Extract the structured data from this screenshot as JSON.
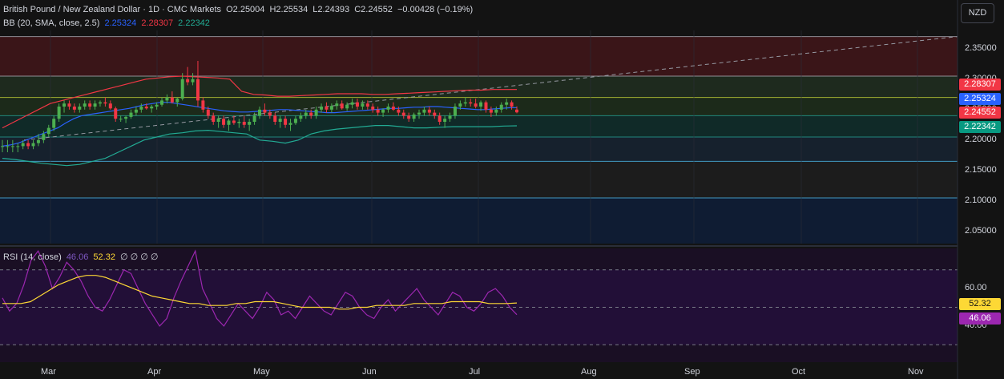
{
  "header": {
    "symbol": "British Pound / New Zealand Dollar · 1D · CMC Markets",
    "open": "O2.25004",
    "high": "H2.25534",
    "low": "L2.24393",
    "close": "C2.24552",
    "change": "−0.00428 (−0.19%)"
  },
  "bb": {
    "label": "BB (20, SMA, close, 2.5)",
    "basis": "2.25324",
    "upper": "2.28307",
    "lower": "2.22342"
  },
  "rsi": {
    "label": "RSI (14, close)",
    "rsi_val": "46.06",
    "ma_val": "52.32",
    "extra": "∅ ∅ ∅ ∅"
  },
  "currency_button": "NZD",
  "price_axis": [
    "2.35000",
    "2.30000",
    "2.25000",
    "2.20000",
    "2.15000",
    "2.10000",
    "2.05000"
  ],
  "price_tags": [
    {
      "text": "2.28307",
      "color": "#f23645"
    },
    {
      "text": "2.25324",
      "color": "#2962ff"
    },
    {
      "text": "2.24552",
      "color": "#f23645"
    },
    {
      "text": "2.22342",
      "color": "#089981"
    }
  ],
  "rsi_axis": [
    "60.00",
    "40.00"
  ],
  "rsi_tags": [
    {
      "text": "52.32",
      "color": "#fdd835"
    },
    {
      "text": "46.06",
      "color": "#9c27b0"
    }
  ],
  "time_axis": [
    "Mar",
    "Apr",
    "May",
    "Jun",
    "Jul",
    "Aug",
    "Sep",
    "Oct",
    "Nov"
  ],
  "chart_data": {
    "type": "candlestick",
    "price_range": [
      2.03,
      2.38
    ],
    "candle_start": "Feb 19",
    "ohlc": [
      [
        2.19,
        2.2,
        2.18,
        2.19
      ],
      [
        2.19,
        2.2,
        2.18,
        2.19
      ],
      [
        2.19,
        2.2,
        2.18,
        2.19
      ],
      [
        2.19,
        2.195,
        2.18,
        2.19
      ],
      [
        2.19,
        2.2,
        2.185,
        2.195
      ],
      [
        2.195,
        2.2,
        2.185,
        2.19
      ],
      [
        2.19,
        2.2,
        2.185,
        2.195
      ],
      [
        2.195,
        2.21,
        2.19,
        2.2
      ],
      [
        2.2,
        2.215,
        2.195,
        2.21
      ],
      [
        2.21,
        2.225,
        2.205,
        2.22
      ],
      [
        2.22,
        2.24,
        2.215,
        2.235
      ],
      [
        2.235,
        2.26,
        2.23,
        2.255
      ],
      [
        2.255,
        2.265,
        2.245,
        2.26
      ],
      [
        2.26,
        2.265,
        2.25,
        2.255
      ],
      [
        2.255,
        2.26,
        2.245,
        2.25
      ],
      [
        2.25,
        2.26,
        2.245,
        2.255
      ],
      [
        2.255,
        2.265,
        2.25,
        2.26
      ],
      [
        2.26,
        2.265,
        2.25,
        2.255
      ],
      [
        2.255,
        2.265,
        2.25,
        2.26
      ],
      [
        2.26,
        2.265,
        2.255,
        2.262
      ],
      [
        2.262,
        2.27,
        2.255,
        2.26
      ],
      [
        2.26,
        2.265,
        2.25,
        2.252
      ],
      [
        2.252,
        2.255,
        2.23,
        2.235
      ],
      [
        2.235,
        2.24,
        2.23,
        2.235
      ],
      [
        2.235,
        2.24,
        2.228,
        2.238
      ],
      [
        2.238,
        2.25,
        2.235,
        2.245
      ],
      [
        2.245,
        2.255,
        2.24,
        2.25
      ],
      [
        2.25,
        2.26,
        2.245,
        2.255
      ],
      [
        2.255,
        2.26,
        2.25,
        2.252
      ],
      [
        2.252,
        2.258,
        2.245,
        2.255
      ],
      [
        2.255,
        2.262,
        2.25,
        2.258
      ],
      [
        2.258,
        2.27,
        2.255,
        2.265
      ],
      [
        2.265,
        2.275,
        2.26,
        2.27
      ],
      [
        2.27,
        2.28,
        2.26,
        2.262
      ],
      [
        2.262,
        2.27,
        2.255,
        2.268
      ],
      [
        2.268,
        2.31,
        2.265,
        2.3
      ],
      [
        2.3,
        2.32,
        2.29,
        2.295
      ],
      [
        2.295,
        2.31,
        2.29,
        2.3
      ],
      [
        2.3,
        2.33,
        2.255,
        2.265
      ],
      [
        2.265,
        2.27,
        2.245,
        2.25
      ],
      [
        2.25,
        2.255,
        2.235,
        2.24
      ],
      [
        2.24,
        2.245,
        2.225,
        2.23
      ],
      [
        2.23,
        2.24,
        2.22,
        2.235
      ],
      [
        2.235,
        2.24,
        2.22,
        2.225
      ],
      [
        2.225,
        2.235,
        2.215,
        2.232
      ],
      [
        2.232,
        2.24,
        2.225,
        2.228
      ],
      [
        2.228,
        2.235,
        2.22,
        2.23
      ],
      [
        2.23,
        2.24,
        2.22,
        2.225
      ],
      [
        2.225,
        2.235,
        2.215,
        2.23
      ],
      [
        2.23,
        2.245,
        2.225,
        2.24
      ],
      [
        2.24,
        2.255,
        2.235,
        2.25
      ],
      [
        2.25,
        2.26,
        2.24,
        2.245
      ],
      [
        2.245,
        2.25,
        2.235,
        2.24
      ],
      [
        2.24,
        2.245,
        2.225,
        2.23
      ],
      [
        2.23,
        2.24,
        2.22,
        2.235
      ],
      [
        2.235,
        2.24,
        2.22,
        2.225
      ],
      [
        2.225,
        2.235,
        2.215,
        2.228
      ],
      [
        2.228,
        2.24,
        2.225,
        2.235
      ],
      [
        2.235,
        2.245,
        2.23,
        2.24
      ],
      [
        2.24,
        2.25,
        2.235,
        2.245
      ],
      [
        2.245,
        2.25,
        2.235,
        2.24
      ],
      [
        2.24,
        2.255,
        2.235,
        2.25
      ],
      [
        2.25,
        2.26,
        2.245,
        2.255
      ],
      [
        2.255,
        2.262,
        2.245,
        2.25
      ],
      [
        2.25,
        2.26,
        2.245,
        2.256
      ],
      [
        2.256,
        2.265,
        2.25,
        2.26
      ],
      [
        2.26,
        2.265,
        2.25,
        2.252
      ],
      [
        2.252,
        2.262,
        2.248,
        2.258
      ],
      [
        2.258,
        2.268,
        2.252,
        2.262
      ],
      [
        2.262,
        2.268,
        2.25,
        2.255
      ],
      [
        2.255,
        2.265,
        2.25,
        2.26
      ],
      [
        2.26,
        2.265,
        2.25,
        2.255
      ],
      [
        2.255,
        2.26,
        2.245,
        2.25
      ],
      [
        2.25,
        2.255,
        2.24,
        2.245
      ],
      [
        2.245,
        2.252,
        2.238,
        2.25
      ],
      [
        2.25,
        2.26,
        2.245,
        2.255
      ],
      [
        2.255,
        2.262,
        2.248,
        2.25
      ],
      [
        2.25,
        2.255,
        2.24,
        2.245
      ],
      [
        2.245,
        2.25,
        2.235,
        2.24
      ],
      [
        2.24,
        2.245,
        2.23,
        2.235
      ],
      [
        2.235,
        2.245,
        2.23,
        2.242
      ],
      [
        2.242,
        2.25,
        2.235,
        2.245
      ],
      [
        2.245,
        2.255,
        2.24,
        2.25
      ],
      [
        2.25,
        2.255,
        2.24,
        2.245
      ],
      [
        2.245,
        2.25,
        2.235,
        2.24
      ],
      [
        2.24,
        2.245,
        2.225,
        2.23
      ],
      [
        2.23,
        2.24,
        2.22,
        2.235
      ],
      [
        2.235,
        2.245,
        2.23,
        2.24
      ],
      [
        2.24,
        2.26,
        2.235,
        2.255
      ],
      [
        2.255,
        2.265,
        2.25,
        2.26
      ],
      [
        2.26,
        2.27,
        2.255,
        2.262
      ],
      [
        2.262,
        2.268,
        2.255,
        2.26
      ],
      [
        2.26,
        2.268,
        2.252,
        2.255
      ],
      [
        2.255,
        2.265,
        2.248,
        2.262
      ],
      [
        2.262,
        2.265,
        2.245,
        2.25
      ],
      [
        2.25,
        2.255,
        2.238,
        2.245
      ],
      [
        2.245,
        2.255,
        2.24,
        2.25
      ],
      [
        2.25,
        2.262,
        2.245,
        2.258
      ],
      [
        2.258,
        2.268,
        2.25,
        2.262
      ],
      [
        2.262,
        2.265,
        2.25,
        2.255
      ],
      [
        2.25004,
        2.25534,
        2.24393,
        2.24552
      ]
    ],
    "bb_basis": [
      2.19,
      2.192,
      2.195,
      2.2,
      2.205,
      2.21,
      2.215,
      2.22,
      2.228,
      2.235,
      2.24,
      2.242,
      2.244,
      2.246,
      2.248,
      2.25,
      2.252,
      2.255,
      2.258,
      2.26,
      2.262,
      2.262,
      2.26,
      2.258,
      2.256,
      2.254,
      2.252,
      2.25,
      2.248,
      2.247,
      2.246,
      2.246,
      2.247,
      2.248,
      2.249,
      2.25,
      2.25,
      2.249,
      2.248,
      2.247,
      2.246,
      2.245,
      2.245,
      2.246,
      2.247,
      2.248,
      2.249,
      2.25,
      2.251,
      2.252,
      2.252,
      2.253,
      2.254,
      2.254,
      2.255,
      2.255,
      2.254,
      2.253,
      2.252,
      2.251,
      2.25,
      2.25,
      2.251,
      2.252,
      2.253,
      2.25324
    ],
    "bb_upper": [
      2.22,
      2.23,
      2.24,
      2.25,
      2.26,
      2.265,
      2.27,
      2.275,
      2.28,
      2.285,
      2.29,
      2.295,
      2.3,
      2.302,
      2.304,
      2.305,
      2.304,
      2.303,
      2.302,
      2.3,
      2.28,
      2.275,
      2.274,
      2.272,
      2.272,
      2.273,
      2.274,
      2.275,
      2.276,
      2.276,
      2.276,
      2.275,
      2.275,
      2.276,
      2.277,
      2.278,
      2.279,
      2.28,
      2.281,
      2.282,
      2.282,
      2.283,
      2.283,
      2.28307
    ],
    "bb_lower": [
      2.17,
      2.168,
      2.165,
      2.162,
      2.16,
      2.158,
      2.16,
      2.165,
      2.17,
      2.18,
      2.19,
      2.2,
      2.205,
      2.21,
      2.212,
      2.215,
      2.216,
      2.214,
      2.212,
      2.21,
      2.2,
      2.198,
      2.195,
      2.2,
      2.21,
      2.215,
      2.218,
      2.22,
      2.222,
      2.224,
      2.224,
      2.222,
      2.22,
      2.22,
      2.221,
      2.222,
      2.222,
      2.222,
      2.222,
      2.223,
      2.22342
    ],
    "rsi": [
      55,
      48,
      52,
      62,
      75,
      80,
      72,
      60,
      66,
      74,
      70,
      64,
      56,
      50,
      48,
      54,
      62,
      70,
      68,
      60,
      52,
      46,
      40,
      44,
      55,
      64,
      72,
      80,
      60,
      52,
      44,
      40,
      46,
      52,
      48,
      44,
      50,
      58,
      54,
      46,
      48,
      44,
      50,
      56,
      52,
      48,
      46,
      52,
      58,
      56,
      50,
      46,
      44,
      50,
      54,
      48,
      52,
      56,
      60,
      54,
      50,
      46,
      52,
      58,
      56,
      50,
      48,
      52,
      58,
      60,
      56,
      50,
      46.06
    ],
    "rsi_ma": [
      52,
      52,
      52,
      53,
      56,
      59,
      62,
      64,
      66,
      67,
      67,
      66,
      64,
      62,
      60,
      58,
      56,
      55,
      54,
      53,
      52,
      52,
      51,
      51,
      51,
      52,
      52,
      53,
      53,
      53,
      52,
      51,
      50,
      50,
      50,
      50,
      49,
      49,
      50,
      50,
      51,
      51,
      51,
      51,
      52,
      52,
      52,
      52,
      53,
      53,
      53,
      53,
      52,
      52,
      52,
      52.32
    ],
    "horizontal_levels": [
      2.37,
      2.305,
      2.27,
      2.24,
      2.205,
      2.165,
      2.105
    ],
    "rsi_bands": [
      70,
      50,
      30
    ]
  }
}
